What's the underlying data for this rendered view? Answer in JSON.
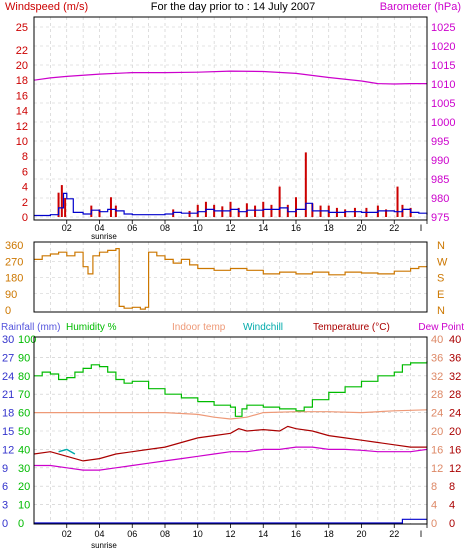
{
  "page_title": "For the day prior to : 14 July 2007",
  "colors": {
    "windspeed": "#cc0000",
    "windavg": "#0000cc",
    "barometer": "#cc00cc",
    "direction": "#cc7700",
    "rainfall": "#5555dd",
    "humidity": "#00bb00",
    "indoor": "#ee9977",
    "windchill": "#00aaaa",
    "temperature": "#aa0000",
    "dewpoint": "#cc00cc",
    "rain_axis": "#3333cc",
    "temp_axis": "#dd8866",
    "grid": "#c8c8c8"
  },
  "time_ticks": [
    "02",
    "04",
    "06",
    "08",
    "10",
    "12",
    "14",
    "16",
    "18",
    "20",
    "22",
    "I"
  ],
  "sunrise_label": "sunrise",
  "chart_data": [
    {
      "type": "bar",
      "title": "For the day prior to : 14 July 2007",
      "left_axis_label": "Windspeed (m/s)",
      "right_axis_label": "Barometer (hPa)",
      "left_ticks": [
        "0",
        "2",
        "4",
        "6",
        "8",
        "10",
        "12",
        "14",
        "16",
        "18",
        "20",
        "22",
        "25"
      ],
      "right_ticks": [
        "975",
        "980",
        "985",
        "990",
        "995",
        "1000",
        "1005",
        "1010",
        "1015",
        "1020",
        "1025"
      ],
      "ylim_left": [
        0,
        25
      ],
      "ylim_right": [
        975,
        1025
      ],
      "xlim_hours": [
        0,
        24
      ],
      "gust_bars": [
        [
          1.5,
          3.2
        ],
        [
          1.7,
          4.2
        ],
        [
          1.9,
          2.5
        ],
        [
          3.5,
          1.5
        ],
        [
          4.0,
          1.0
        ],
        [
          4.7,
          2.6
        ],
        [
          5.0,
          1.5
        ],
        [
          8.5,
          1.0
        ],
        [
          9.5,
          0.8
        ],
        [
          10.0,
          1.6
        ],
        [
          10.5,
          2.0
        ],
        [
          11.0,
          1.6
        ],
        [
          11.5,
          1.4
        ],
        [
          12.0,
          2.0
        ],
        [
          12.5,
          1.2
        ],
        [
          13.0,
          1.8
        ],
        [
          13.5,
          1.5
        ],
        [
          14.0,
          2.0
        ],
        [
          14.5,
          1.6
        ],
        [
          15.0,
          4.0
        ],
        [
          15.5,
          1.6
        ],
        [
          16.0,
          2.6
        ],
        [
          16.6,
          8.5
        ],
        [
          17.0,
          1.8
        ],
        [
          17.5,
          1.5
        ],
        [
          18.0,
          1.5
        ],
        [
          18.5,
          1.2
        ],
        [
          19.0,
          1.0
        ],
        [
          19.6,
          1.2
        ],
        [
          20.3,
          1.2
        ],
        [
          21.0,
          1.5
        ],
        [
          21.5,
          1.0
        ],
        [
          22.2,
          4.0
        ],
        [
          22.5,
          1.6
        ],
        [
          23.0,
          1.2
        ]
      ],
      "wind_avg": [
        [
          0,
          0.2
        ],
        [
          1,
          0.3
        ],
        [
          1.5,
          1.2
        ],
        [
          1.8,
          3.1
        ],
        [
          2.0,
          2.4
        ],
        [
          2.4,
          0.6
        ],
        [
          3,
          0.4
        ],
        [
          3.5,
          0.9
        ],
        [
          4.0,
          0.7
        ],
        [
          4.5,
          1.0
        ],
        [
          5.0,
          0.8
        ],
        [
          5.5,
          0.4
        ],
        [
          6,
          0.3
        ],
        [
          7,
          0.3
        ],
        [
          8,
          0.4
        ],
        [
          8.5,
          0.6
        ],
        [
          9,
          0.5
        ],
        [
          10,
          0.7
        ],
        [
          10.5,
          1.0
        ],
        [
          11,
          0.8
        ],
        [
          12,
          1.0
        ],
        [
          12.5,
          0.7
        ],
        [
          13,
          0.9
        ],
        [
          14,
          1.0
        ],
        [
          15,
          1.2
        ],
        [
          15.5,
          0.7
        ],
        [
          16,
          1.0
        ],
        [
          16.6,
          1.8
        ],
        [
          17,
          0.8
        ],
        [
          18,
          0.6
        ],
        [
          19,
          0.7
        ],
        [
          20,
          0.6
        ],
        [
          21,
          0.8
        ],
        [
          22,
          0.7
        ],
        [
          22.5,
          1.0
        ],
        [
          23,
          0.6
        ],
        [
          23.5,
          0.5
        ],
        [
          24,
          0.3
        ]
      ],
      "barometer": [
        [
          0,
          1011.0
        ],
        [
          1,
          1011.6
        ],
        [
          2,
          1012.0
        ],
        [
          4,
          1012.6
        ],
        [
          6,
          1013.0
        ],
        [
          8,
          1013.0
        ],
        [
          10,
          1013.1
        ],
        [
          12,
          1013.4
        ],
        [
          14,
          1013.3
        ],
        [
          16,
          1012.8
        ],
        [
          18,
          1011.7
        ],
        [
          20,
          1010.8
        ],
        [
          21,
          1010.1
        ],
        [
          22,
          1010.0
        ],
        [
          23,
          1010.1
        ],
        [
          24,
          1010.1
        ]
      ]
    },
    {
      "type": "scatter",
      "title": "",
      "right_axis_label": "",
      "left_ticks": [
        "0",
        "90",
        "180",
        "270",
        "360"
      ],
      "right_ticks": [
        "N",
        "W",
        "S",
        "E",
        "N"
      ],
      "ylim": [
        0,
        360
      ],
      "xlim_hours": [
        0,
        24
      ],
      "direction": [
        [
          0,
          280
        ],
        [
          0.5,
          300
        ],
        [
          1,
          310
        ],
        [
          1.5,
          320
        ],
        [
          2,
          300
        ],
        [
          2.5,
          320
        ],
        [
          3,
          240
        ],
        [
          3.3,
          200
        ],
        [
          3.6,
          300
        ],
        [
          4,
          320
        ],
        [
          4.5,
          330
        ],
        [
          5,
          340
        ],
        [
          5.2,
          20
        ],
        [
          5.5,
          10
        ],
        [
          6,
          15
        ],
        [
          6.5,
          5
        ],
        [
          6.8,
          15
        ],
        [
          7,
          320
        ],
        [
          7.5,
          300
        ],
        [
          8,
          280
        ],
        [
          8.5,
          260
        ],
        [
          9,
          280
        ],
        [
          9.5,
          250
        ],
        [
          10,
          230
        ],
        [
          11,
          220
        ],
        [
          12,
          230
        ],
        [
          13,
          220
        ],
        [
          14,
          200
        ],
        [
          15,
          210
        ],
        [
          16,
          200
        ],
        [
          17,
          210
        ],
        [
          18,
          195
        ],
        [
          19,
          210
        ],
        [
          20,
          205
        ],
        [
          21,
          200
        ],
        [
          22,
          215
        ],
        [
          23,
          230
        ],
        [
          23.5,
          240
        ],
        [
          24,
          240
        ]
      ]
    },
    {
      "type": "line",
      "title": "",
      "rain_label": "Rainfall (mm)",
      "humidity_label": "Humidity %",
      "indoor_label": "Indoor temp",
      "windchill_label": "Windchill",
      "temperature_label": "Temperature (°C)",
      "dewpoint_label": "Dew Point",
      "rain_ticks": [
        "0",
        "3",
        "6",
        "9",
        "12",
        "15",
        "18",
        "21",
        "24",
        "27",
        "30"
      ],
      "humidity_ticks": [
        "0",
        "10",
        "20",
        "30",
        "40",
        "50",
        "60",
        "70",
        "80",
        "90",
        "100"
      ],
      "temp_ticks_orange": [
        "0",
        "4",
        "8",
        "12",
        "16",
        "20",
        "24",
        "28",
        "32",
        "36",
        "40"
      ],
      "temp_ticks_red": [
        "0",
        "4",
        "8",
        "12",
        "16",
        "20",
        "24",
        "28",
        "32",
        "36",
        "40"
      ],
      "ylim_humidity": [
        0,
        100
      ],
      "ylim_temp": [
        0,
        40
      ],
      "ylim_rain": [
        0,
        30
      ],
      "xlim_hours": [
        0,
        24
      ],
      "humidity": [
        [
          0,
          80
        ],
        [
          0.5,
          82
        ],
        [
          1,
          81
        ],
        [
          1.5,
          78
        ],
        [
          2,
          79
        ],
        [
          2.5,
          82
        ],
        [
          3,
          84
        ],
        [
          3.5,
          86
        ],
        [
          4,
          85
        ],
        [
          4.5,
          82
        ],
        [
          5,
          78
        ],
        [
          5.5,
          76
        ],
        [
          6,
          77
        ],
        [
          7,
          73
        ],
        [
          8,
          70
        ],
        [
          9,
          68
        ],
        [
          10,
          66
        ],
        [
          11,
          64
        ],
        [
          12,
          63
        ],
        [
          12.3,
          58
        ],
        [
          12.7,
          62
        ],
        [
          13,
          64
        ],
        [
          14,
          63
        ],
        [
          15,
          62
        ],
        [
          16,
          61
        ],
        [
          16.5,
          63
        ],
        [
          17,
          67
        ],
        [
          18,
          71
        ],
        [
          19,
          74
        ],
        [
          20,
          77
        ],
        [
          21,
          80
        ],
        [
          22,
          82
        ],
        [
          22.5,
          86
        ],
        [
          23,
          87
        ],
        [
          24,
          88
        ]
      ],
      "indoor_temp": [
        [
          0,
          24
        ],
        [
          2,
          24
        ],
        [
          4,
          24
        ],
        [
          6,
          24
        ],
        [
          8,
          24
        ],
        [
          10,
          23.6
        ],
        [
          11,
          23
        ],
        [
          12,
          22.6
        ],
        [
          13,
          23
        ],
        [
          14,
          24
        ],
        [
          16,
          24.2
        ],
        [
          18,
          24.2
        ],
        [
          20,
          24
        ],
        [
          22,
          24.4
        ],
        [
          24,
          24.6
        ]
      ],
      "temperature": [
        [
          0,
          15
        ],
        [
          1,
          15.5
        ],
        [
          2,
          14.5
        ],
        [
          3,
          13.5
        ],
        [
          4,
          14
        ],
        [
          5,
          15
        ],
        [
          6,
          15.5
        ],
        [
          7,
          16
        ],
        [
          8,
          16.5
        ],
        [
          9,
          17.5
        ],
        [
          10,
          18.5
        ],
        [
          11,
          19
        ],
        [
          12,
          19.5
        ],
        [
          12.5,
          20.5
        ],
        [
          13,
          20
        ],
        [
          14,
          20.3
        ],
        [
          15,
          20
        ],
        [
          15.5,
          21
        ],
        [
          16,
          20.5
        ],
        [
          17,
          20
        ],
        [
          18,
          19
        ],
        [
          19,
          18.5
        ],
        [
          20,
          18
        ],
        [
          21,
          17.5
        ],
        [
          22,
          17
        ],
        [
          23,
          16.5
        ],
        [
          24,
          16.5
        ]
      ],
      "windchill": [
        [
          1.5,
          15.5
        ],
        [
          2,
          16.0
        ],
        [
          2.5,
          15.0
        ]
      ],
      "dewpoint": [
        [
          0,
          12.5
        ],
        [
          1,
          12.5
        ],
        [
          2,
          12
        ],
        [
          3,
          11.5
        ],
        [
          4,
          11.5
        ],
        [
          5,
          12
        ],
        [
          6,
          12.5
        ],
        [
          7,
          13
        ],
        [
          8,
          13.5
        ],
        [
          9,
          14
        ],
        [
          10,
          14.5
        ],
        [
          11,
          15
        ],
        [
          12,
          15.5
        ],
        [
          13,
          15.5
        ],
        [
          14,
          16
        ],
        [
          15,
          16
        ],
        [
          16,
          16.5
        ],
        [
          17,
          16.5
        ],
        [
          18,
          16
        ],
        [
          19,
          16
        ],
        [
          20,
          15.8
        ],
        [
          21,
          15.5
        ],
        [
          22,
          15.5
        ],
        [
          23,
          15.5
        ],
        [
          24,
          16
        ]
      ],
      "rainfall": [
        [
          0,
          0
        ],
        [
          22.5,
          0
        ],
        [
          22.5,
          0.6
        ],
        [
          24,
          0.6
        ]
      ]
    }
  ]
}
